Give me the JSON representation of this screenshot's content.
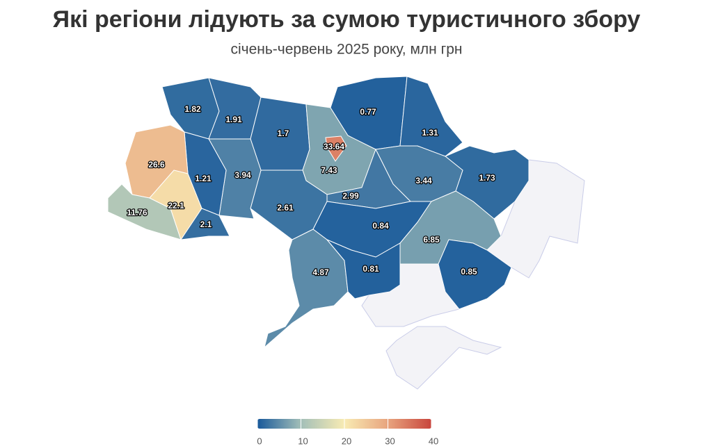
{
  "chart_data": {
    "type": "choropleth",
    "title": "Які регіони лідують за сумою туристичного збору",
    "subtitle": "січень-червень 2025 року, млн грн",
    "values": [
      1.82,
      1.91,
      1.7,
      7.43,
      33.64,
      0.77,
      1.31,
      1.73,
      3.44,
      2.99,
      2.61,
      3.94,
      1.21,
      26.6,
      11.76,
      22.1,
      2.1,
      0.84,
      4.87,
      0.81,
      6.85,
      0.85
    ],
    "colorlim": [
      0,
      40
    ],
    "colorticks": [
      0,
      10,
      20,
      30,
      40
    ],
    "colorscale": [
      "#18599a",
      "#a3bfb8",
      "#f8ebb3",
      "#e8a47e",
      "#c8453c"
    ],
    "nodata_color": "#f3f3f7"
  }
}
